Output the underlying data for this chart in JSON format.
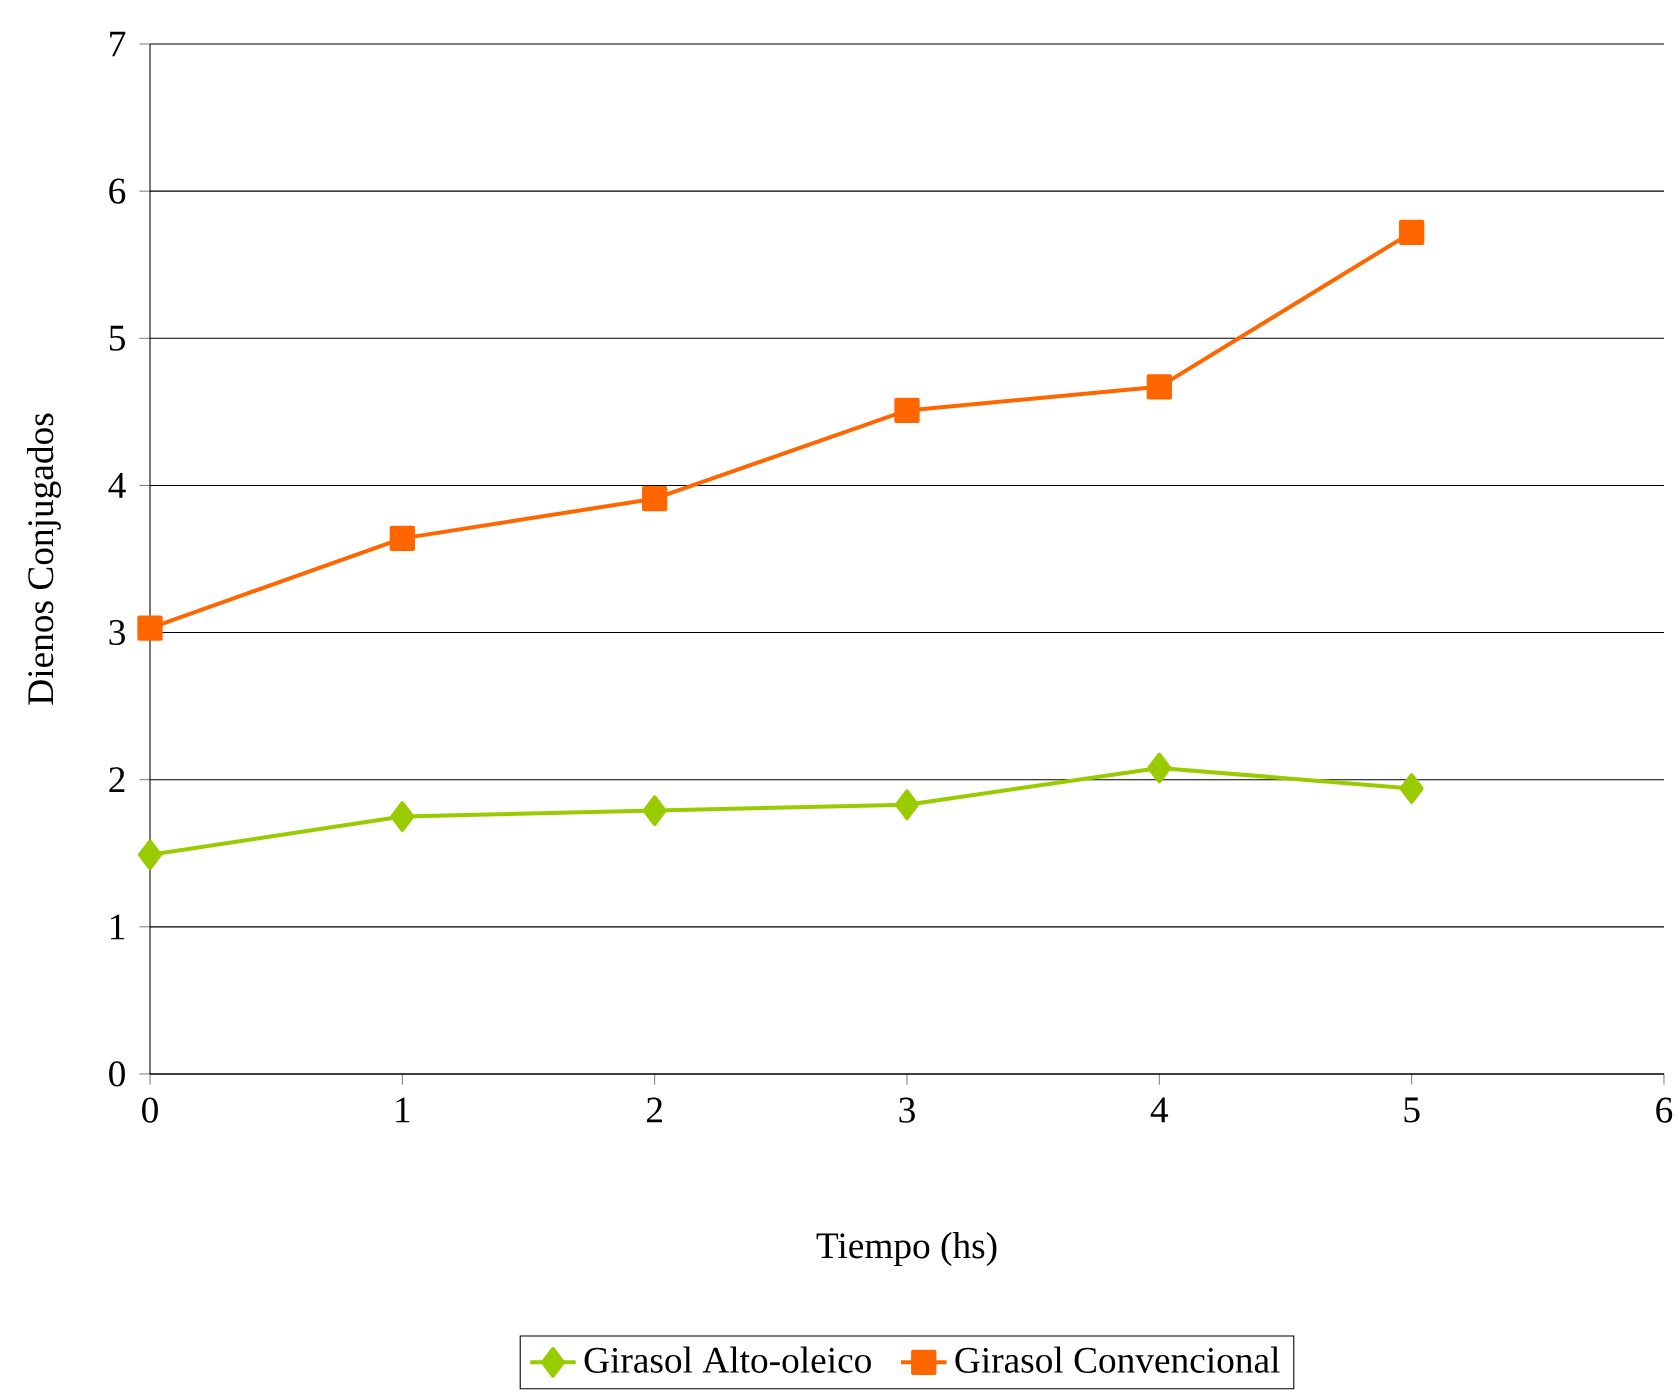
{
  "chart_data": {
    "type": "line",
    "xlabel": "Tiempo (hs)",
    "ylabel": "Dienos Conjugados",
    "x": [
      0,
      1,
      2,
      3,
      4,
      5
    ],
    "series": [
      {
        "name": "Girasol Alto-oleico",
        "color": "#99cc00",
        "marker": "diamond",
        "values": [
          1.49,
          1.75,
          1.79,
          1.83,
          2.08,
          1.94
        ]
      },
      {
        "name": "Girasol Convencional",
        "color": "#ff6600",
        "marker": "square",
        "values": [
          3.03,
          3.64,
          3.91,
          4.51,
          4.67,
          5.72
        ]
      }
    ],
    "xlim": [
      0,
      6
    ],
    "xticks": [
      0,
      1,
      2,
      3,
      4,
      5,
      6
    ],
    "ylim": [
      0,
      7
    ],
    "yticks": [
      0,
      1,
      2,
      3,
      4,
      5,
      6,
      7
    ],
    "grid": "y",
    "legend": "bottom",
    "line_style": "solid"
  }
}
